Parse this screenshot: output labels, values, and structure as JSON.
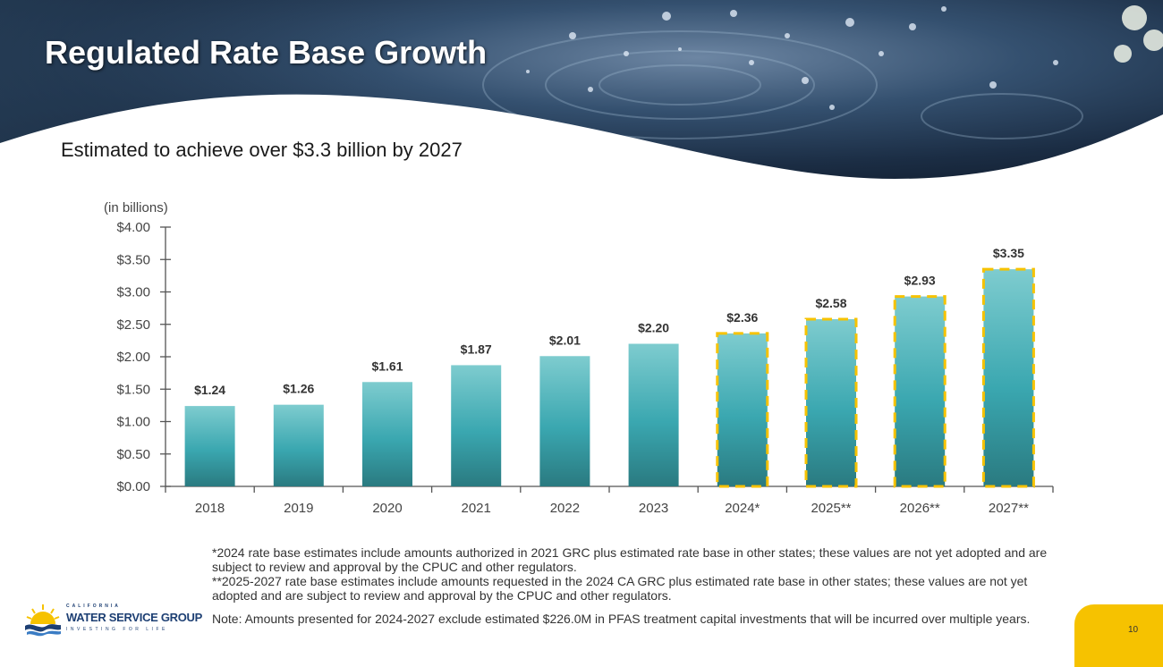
{
  "slide": {
    "title": "Regulated Rate Base Growth",
    "subtitle": "Estimated to achieve over $3.3 billion by 2027",
    "page_number": "10"
  },
  "colors": {
    "bar_top": "#7ecccf",
    "bar_mid": "#3aa7b0",
    "bar_bottom": "#2a7a80",
    "estimate_border": "#f6c200",
    "accent_yellow": "#f6c200",
    "logo_blue": "#1d3f73"
  },
  "chart_data": {
    "type": "bar",
    "title": "",
    "ylabel": "(in billions)",
    "xlabel": "",
    "categories": [
      "2018",
      "2019",
      "2020",
      "2021",
      "2022",
      "2023",
      "2024*",
      "2025**",
      "2026**",
      "2027**"
    ],
    "values": [
      1.24,
      1.26,
      1.61,
      1.87,
      2.01,
      2.2,
      2.36,
      2.58,
      2.93,
      3.35
    ],
    "value_labels": [
      "$1.24",
      "$1.26",
      "$1.61",
      "$1.87",
      "$2.01",
      "$2.20",
      "$2.36",
      "$2.58",
      "$2.93",
      "$3.35"
    ],
    "estimated": [
      false,
      false,
      false,
      false,
      false,
      false,
      true,
      true,
      true,
      true
    ],
    "ylim": [
      0,
      4
    ],
    "yticks": [
      0,
      0.5,
      1,
      1.5,
      2,
      2.5,
      3,
      3.5,
      4
    ],
    "ytick_labels": [
      "$0.00",
      "$0.50",
      "$1.00",
      "$1.50",
      "$2.00",
      "$2.50",
      "$3.00",
      "$3.50",
      "$4.00"
    ],
    "grid": false,
    "legend": "none"
  },
  "notes": {
    "note_2024": "*2024 rate base estimates include amounts authorized in 2021 GRC plus estimated rate base in other states; these values are not yet adopted and are subject to review and approval by the CPUC and other regulators.",
    "note_2025_2027": "**2025-2027 rate base estimates include amounts requested in the 2024 CA GRC plus estimated rate base in other states; these values are not yet adopted and are subject to review and approval by the CPUC and other regulators.",
    "note_pfas": "Note: Amounts presented for 2024-2027 exclude estimated $226.0M in PFAS treatment capital investments that will be incurred over multiple years."
  },
  "logo": {
    "top_text": "CALIFORNIA",
    "main_text": "WATER SERVICE GROUP",
    "tagline": "INVESTING FOR LIFE"
  }
}
